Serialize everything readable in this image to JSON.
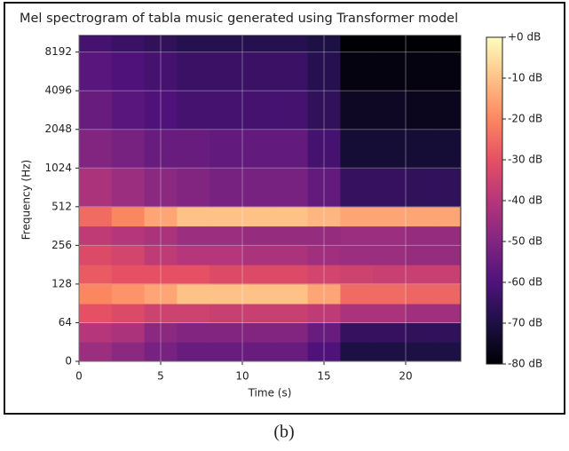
{
  "chart_data": {
    "type": "spectrogram",
    "title": "Mel spectrogram of tabla music generated using Transformer model",
    "x_label": "Time (s)",
    "y_label": "Frequency (Hz)",
    "xlim": [
      0,
      23.37
    ],
    "xticks": [
      0,
      5,
      10,
      15,
      20
    ],
    "ylim": [
      0,
      11025
    ],
    "yticks": [
      0,
      64,
      128,
      256,
      512,
      1024,
      2048,
      4096,
      8192
    ],
    "yscale": "symlog",
    "linthresh": 64,
    "colormap": "magma",
    "colorbar": {
      "lim": [
        -80,
        0
      ],
      "ticks": [
        {
          "value": 0,
          "label": "+0 dB"
        },
        {
          "value": -10,
          "label": "-10 dB"
        },
        {
          "value": -20,
          "label": "-20 dB"
        },
        {
          "value": -30,
          "label": "-30 dB"
        },
        {
          "value": -40,
          "label": "-40 dB"
        },
        {
          "value": -50,
          "label": "-50 dB"
        },
        {
          "value": -60,
          "label": "-60 dB"
        },
        {
          "value": -70,
          "label": "-70 dB"
        },
        {
          "value": -80,
          "label": "-80 dB"
        }
      ]
    },
    "x_edges": [
      0,
      2,
      4,
      6,
      8,
      10,
      12,
      14,
      16,
      18,
      20,
      22,
      23.37
    ],
    "y_edges": [
      0,
      32,
      64,
      90,
      128,
      181,
      256,
      362,
      512,
      1024,
      2048,
      4096,
      8192,
      11025
    ],
    "values": [
      [
        -45,
        -48,
        -52,
        -55,
        -55,
        -55,
        -55,
        -60,
        -70,
        -70,
        -70,
        -70
      ],
      [
        -40,
        -42,
        -48,
        -50,
        -50,
        -50,
        -50,
        -55,
        -65,
        -65,
        -66,
        -66
      ],
      [
        -30,
        -32,
        -35,
        -35,
        -36,
        -36,
        -36,
        -38,
        -42,
        -42,
        -44,
        -44
      ],
      [
        -20,
        -18,
        -15,
        -10,
        -10,
        -10,
        -10,
        -15,
        -25,
        -25,
        -26,
        -26
      ],
      [
        -28,
        -30,
        -30,
        -30,
        -32,
        -32,
        -32,
        -34,
        -35,
        -36,
        -36,
        -36
      ],
      [
        -32,
        -34,
        -38,
        -40,
        -40,
        -42,
        -42,
        -44,
        -45,
        -45,
        -46,
        -46
      ],
      [
        -38,
        -40,
        -42,
        -45,
        -45,
        -46,
        -46,
        -46,
        -45,
        -45,
        -46,
        -46
      ],
      [
        -25,
        -20,
        -15,
        -10,
        -10,
        -10,
        -10,
        -12,
        -15,
        -15,
        -15,
        -15
      ],
      [
        -42,
        -45,
        -48,
        -50,
        -52,
        -52,
        -52,
        -56,
        -65,
        -65,
        -66,
        -66
      ],
      [
        -50,
        -52,
        -55,
        -55,
        -56,
        -56,
        -56,
        -62,
        -72,
        -72,
        -72,
        -72
      ],
      [
        -55,
        -58,
        -60,
        -62,
        -62,
        -62,
        -62,
        -66,
        -75,
        -75,
        -76,
        -76
      ],
      [
        -58,
        -60,
        -62,
        -64,
        -64,
        -64,
        -64,
        -68,
        -78,
        -78,
        -78,
        -78
      ],
      [
        -62,
        -64,
        -66,
        -68,
        -68,
        -68,
        -68,
        -70,
        -80,
        -80,
        -80,
        -80
      ]
    ]
  },
  "caption": "(b)"
}
